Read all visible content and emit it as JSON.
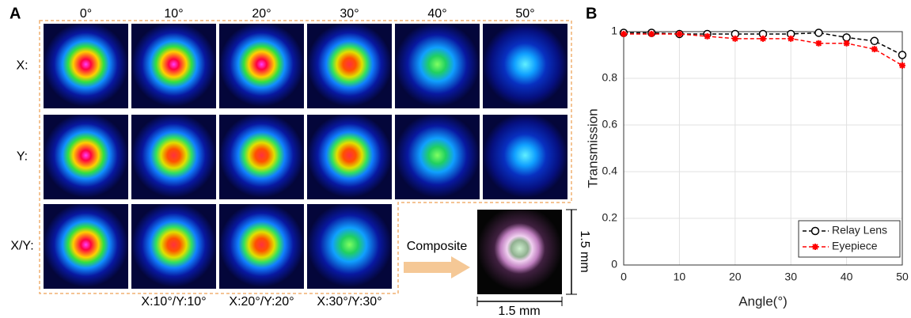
{
  "panel_a": {
    "label": "A",
    "columns": [
      "0°",
      "10°",
      "20°",
      "30°",
      "40°",
      "50°"
    ],
    "rows": [
      "X:",
      "Y:",
      "X/Y:"
    ],
    "xy_captions": [
      "X:10°/Y:10°",
      "X:20°/Y:20°",
      "X:30°/Y:30°"
    ],
    "arrow_label": "Composite",
    "scale_vertical": "1.5 mm",
    "scale_horizontal": "1.5 mm"
  },
  "chart_data": {
    "type": "line",
    "panel_label": "B",
    "x": [
      0,
      5,
      10,
      15,
      20,
      25,
      30,
      35,
      40,
      45,
      50
    ],
    "series": [
      {
        "name": "Relay Lens",
        "color": "#000000",
        "marker": "circle",
        "values": [
          0.995,
          0.995,
          0.99,
          0.99,
          0.99,
          0.99,
          0.99,
          0.995,
          0.975,
          0.96,
          0.9
        ]
      },
      {
        "name": "Eyepiece",
        "color": "#ff0000",
        "marker": "asterisk",
        "values": [
          0.99,
          0.99,
          0.99,
          0.98,
          0.97,
          0.97,
          0.97,
          0.95,
          0.95,
          0.925,
          0.855
        ]
      }
    ],
    "xlabel": "Angle(°)",
    "ylabel": "Transmission",
    "xlim": [
      0,
      50
    ],
    "ylim": [
      0,
      1
    ],
    "xticks": [
      0,
      10,
      20,
      30,
      40,
      50
    ],
    "yticks": [
      0,
      0.2,
      0.4,
      0.6,
      0.8,
      1
    ],
    "grid": true,
    "legend": "lower right"
  }
}
